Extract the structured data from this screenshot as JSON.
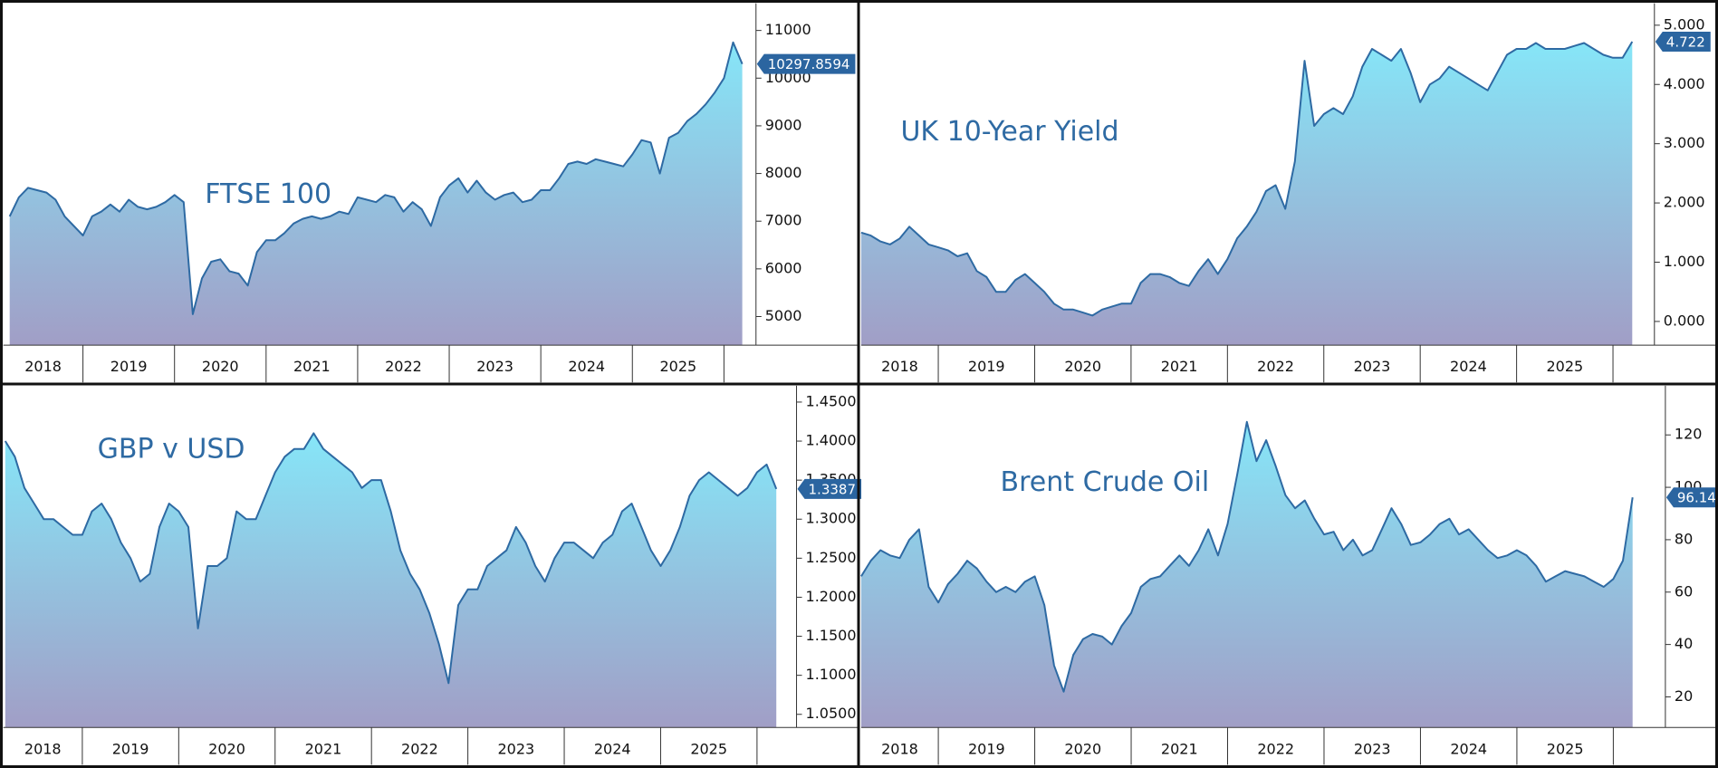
{
  "chart_data": [
    {
      "type": "area",
      "title": "FTSE 100",
      "color": "#2e6aa3",
      "gradient": [
        "#86e6f8",
        "#a19ec6"
      ],
      "xlim": [
        2018.13,
        2026.35
      ],
      "ylim": [
        4400,
        11570
      ],
      "xticks": [
        2018,
        2019,
        2020,
        2021,
        2022,
        2023,
        2024,
        2025
      ],
      "yticks": [
        5000,
        6000,
        7000,
        8000,
        9000,
        10000,
        11000
      ],
      "x": [
        2018.2,
        2018.3,
        2018.4,
        2018.5,
        2018.6,
        2018.7,
        2018.8,
        2018.9,
        2019.0,
        2019.1,
        2019.2,
        2019.3,
        2019.4,
        2019.5,
        2019.6,
        2019.7,
        2019.8,
        2019.9,
        2020.0,
        2020.1,
        2020.2,
        2020.3,
        2020.4,
        2020.5,
        2020.6,
        2020.7,
        2020.8,
        2020.9,
        2021.0,
        2021.1,
        2021.2,
        2021.3,
        2021.4,
        2021.5,
        2021.6,
        2021.7,
        2021.8,
        2021.9,
        2022.0,
        2022.1,
        2022.2,
        2022.3,
        2022.4,
        2022.5,
        2022.6,
        2022.7,
        2022.8,
        2022.9,
        2023.0,
        2023.1,
        2023.2,
        2023.3,
        2023.4,
        2023.5,
        2023.6,
        2023.7,
        2023.8,
        2023.9,
        2024.0,
        2024.1,
        2024.2,
        2024.3,
        2024.4,
        2024.5,
        2024.6,
        2024.7,
        2024.8,
        2024.9,
        2025.0,
        2025.1,
        2025.2,
        2025.3,
        2025.4,
        2025.5,
        2025.6,
        2025.7,
        2025.8,
        2025.9,
        2026.0,
        2026.1,
        2026.2
      ],
      "values": [
        7100,
        7500,
        7700,
        7650,
        7600,
        7450,
        7100,
        6900,
        6700,
        7100,
        7200,
        7350,
        7200,
        7450,
        7300,
        7250,
        7300,
        7400,
        7550,
        7400,
        5050,
        5800,
        6150,
        6200,
        5950,
        5900,
        5650,
        6350,
        6600,
        6600,
        6750,
        6950,
        7050,
        7100,
        7050,
        7100,
        7200,
        7150,
        7500,
        7450,
        7400,
        7550,
        7500,
        7200,
        7400,
        7250,
        6900,
        7500,
        7750,
        7900,
        7600,
        7850,
        7600,
        7450,
        7550,
        7600,
        7400,
        7450,
        7650,
        7650,
        7900,
        8200,
        8250,
        8200,
        8300,
        8250,
        8200,
        8150,
        8400,
        8700,
        8650,
        8000,
        8750,
        8850,
        9100,
        9250,
        9450,
        9700,
        10000,
        10750,
        10297.8594
      ]
    },
    {
      "type": "area",
      "title": "UK 10-Year Yield",
      "color": "#2e6aa3",
      "gradient": [
        "#86e6f8",
        "#a19ec6"
      ],
      "xlim": [
        2018.2,
        2026.43
      ],
      "ylim": [
        -0.4,
        5.37
      ],
      "xticks": [
        2018,
        2019,
        2020,
        2021,
        2022,
        2023,
        2024,
        2025
      ],
      "yticks": [
        {
          "value": 0,
          "label": "0.000"
        },
        {
          "value": 1,
          "label": "1.000"
        },
        {
          "value": 2,
          "label": "2.000"
        },
        {
          "value": 3,
          "label": "3.000"
        },
        {
          "value": 4,
          "label": "4.000"
        },
        {
          "value": 5,
          "label": "5.000"
        }
      ],
      "x": [
        2018.2,
        2018.3,
        2018.4,
        2018.5,
        2018.6,
        2018.7,
        2018.8,
        2018.9,
        2019.0,
        2019.1,
        2019.2,
        2019.3,
        2019.4,
        2019.5,
        2019.6,
        2019.7,
        2019.8,
        2019.9,
        2020.0,
        2020.1,
        2020.2,
        2020.3,
        2020.4,
        2020.5,
        2020.6,
        2020.7,
        2020.8,
        2020.9,
        2021.0,
        2021.1,
        2021.2,
        2021.3,
        2021.4,
        2021.5,
        2021.6,
        2021.7,
        2021.8,
        2021.9,
        2022.0,
        2022.1,
        2022.2,
        2022.3,
        2022.4,
        2022.5,
        2022.6,
        2022.7,
        2022.8,
        2022.9,
        2023.0,
        2023.1,
        2023.2,
        2023.3,
        2023.4,
        2023.5,
        2023.6,
        2023.7,
        2023.8,
        2023.9,
        2024.0,
        2024.1,
        2024.2,
        2024.3,
        2024.4,
        2024.5,
        2024.6,
        2024.7,
        2024.8,
        2024.9,
        2025.0,
        2025.1,
        2025.2,
        2025.3,
        2025.4,
        2025.5,
        2025.6,
        2025.7,
        2025.8,
        2025.9,
        2026.0,
        2026.1,
        2026.2
      ],
      "values": [
        1.5,
        1.45,
        1.35,
        1.3,
        1.4,
        1.6,
        1.45,
        1.3,
        1.25,
        1.2,
        1.1,
        1.15,
        0.85,
        0.75,
        0.5,
        0.5,
        0.7,
        0.8,
        0.65,
        0.5,
        0.3,
        0.2,
        0.2,
        0.15,
        0.1,
        0.2,
        0.25,
        0.3,
        0.3,
        0.65,
        0.8,
        0.8,
        0.75,
        0.65,
        0.6,
        0.85,
        1.05,
        0.8,
        1.05,
        1.4,
        1.6,
        1.85,
        2.2,
        2.3,
        1.9,
        2.7,
        4.4,
        3.3,
        3.5,
        3.6,
        3.5,
        3.8,
        4.3,
        4.6,
        4.5,
        4.4,
        4.6,
        4.2,
        3.7,
        4.0,
        4.1,
        4.3,
        4.2,
        4.1,
        4.0,
        3.9,
        4.2,
        4.5,
        4.6,
        4.6,
        4.7,
        4.6,
        4.6,
        4.6,
        4.65,
        4.7,
        4.6,
        4.5,
        4.45,
        4.45,
        4.722
      ]
    },
    {
      "type": "area",
      "title": "GBP v USD",
      "color": "#2e6aa3",
      "gradient": [
        "#86e6f8",
        "#a19ec6"
      ],
      "xlim": [
        2018.18,
        2026.41
      ],
      "ylim": [
        1.0331,
        1.471
      ],
      "xticks": [
        2018,
        2019,
        2020,
        2021,
        2022,
        2023,
        2024,
        2025
      ],
      "yticks": [
        {
          "value": 1.05,
          "label": "1.0500"
        },
        {
          "value": 1.1,
          "label": "1.1000"
        },
        {
          "value": 1.15,
          "label": "1.1500"
        },
        {
          "value": 1.2,
          "label": "1.2000"
        },
        {
          "value": 1.25,
          "label": "1.2500"
        },
        {
          "value": 1.3,
          "label": "1.3000"
        },
        {
          "value": 1.35,
          "label": "1.3500"
        },
        {
          "value": 1.4,
          "label": "1.4000"
        },
        {
          "value": 1.45,
          "label": "1.4500"
        }
      ],
      "x": [
        2018.2,
        2018.3,
        2018.4,
        2018.5,
        2018.6,
        2018.7,
        2018.8,
        2018.9,
        2019.0,
        2019.1,
        2019.2,
        2019.3,
        2019.4,
        2019.5,
        2019.6,
        2019.7,
        2019.8,
        2019.9,
        2020.0,
        2020.1,
        2020.2,
        2020.3,
        2020.4,
        2020.5,
        2020.6,
        2020.7,
        2020.8,
        2020.9,
        2021.0,
        2021.1,
        2021.2,
        2021.3,
        2021.4,
        2021.5,
        2021.6,
        2021.7,
        2021.8,
        2021.9,
        2022.0,
        2022.1,
        2022.2,
        2022.3,
        2022.4,
        2022.5,
        2022.6,
        2022.7,
        2022.8,
        2022.9,
        2023.0,
        2023.1,
        2023.2,
        2023.3,
        2023.4,
        2023.5,
        2023.6,
        2023.7,
        2023.8,
        2023.9,
        2024.0,
        2024.1,
        2024.2,
        2024.3,
        2024.4,
        2024.5,
        2024.6,
        2024.7,
        2024.8,
        2024.9,
        2025.0,
        2025.1,
        2025.2,
        2025.3,
        2025.4,
        2025.5,
        2025.6,
        2025.7,
        2025.8,
        2025.9,
        2026.0,
        2026.1,
        2026.2
      ],
      "values": [
        1.4,
        1.38,
        1.34,
        1.32,
        1.3,
        1.3,
        1.29,
        1.28,
        1.28,
        1.31,
        1.32,
        1.3,
        1.27,
        1.25,
        1.22,
        1.23,
        1.29,
        1.32,
        1.31,
        1.29,
        1.16,
        1.24,
        1.24,
        1.25,
        1.31,
        1.3,
        1.3,
        1.33,
        1.36,
        1.38,
        1.39,
        1.39,
        1.41,
        1.39,
        1.38,
        1.37,
        1.36,
        1.34,
        1.35,
        1.35,
        1.31,
        1.26,
        1.23,
        1.21,
        1.18,
        1.14,
        1.09,
        1.19,
        1.21,
        1.21,
        1.24,
        1.25,
        1.26,
        1.29,
        1.27,
        1.24,
        1.22,
        1.25,
        1.27,
        1.27,
        1.26,
        1.25,
        1.27,
        1.28,
        1.31,
        1.32,
        1.29,
        1.26,
        1.24,
        1.26,
        1.29,
        1.33,
        1.35,
        1.36,
        1.35,
        1.34,
        1.33,
        1.34,
        1.36,
        1.37,
        1.3387
      ]
    },
    {
      "type": "area",
      "title": "Brent Crude Oil",
      "color": "#2e6aa3",
      "gradient": [
        "#86e6f8",
        "#a19ec6"
      ],
      "xlim": [
        2018.2,
        2026.54
      ],
      "ylim": [
        8.3,
        138.8
      ],
      "xticks": [
        2018,
        2019,
        2020,
        2021,
        2022,
        2023,
        2024,
        2025
      ],
      "yticks": [
        20,
        40,
        60,
        80,
        100,
        120
      ],
      "x": [
        2018.2,
        2018.3,
        2018.4,
        2018.5,
        2018.6,
        2018.7,
        2018.8,
        2018.9,
        2019.0,
        2019.1,
        2019.2,
        2019.3,
        2019.4,
        2019.5,
        2019.6,
        2019.7,
        2019.8,
        2019.9,
        2020.0,
        2020.1,
        2020.2,
        2020.3,
        2020.4,
        2020.5,
        2020.6,
        2020.7,
        2020.8,
        2020.9,
        2021.0,
        2021.1,
        2021.2,
        2021.3,
        2021.4,
        2021.5,
        2021.6,
        2021.7,
        2021.8,
        2021.9,
        2022.0,
        2022.1,
        2022.2,
        2022.3,
        2022.4,
        2022.5,
        2022.6,
        2022.7,
        2022.8,
        2022.9,
        2023.0,
        2023.1,
        2023.2,
        2023.3,
        2023.4,
        2023.5,
        2023.6,
        2023.7,
        2023.8,
        2023.9,
        2024.0,
        2024.1,
        2024.2,
        2024.3,
        2024.4,
        2024.5,
        2024.6,
        2024.7,
        2024.8,
        2024.9,
        2025.0,
        2025.1,
        2025.2,
        2025.3,
        2025.4,
        2025.5,
        2025.6,
        2025.7,
        2025.8,
        2025.9,
        2026.0,
        2026.1,
        2026.2
      ],
      "values": [
        66,
        72,
        76,
        74,
        73,
        80,
        84,
        62,
        56,
        63,
        67,
        72,
        69,
        64,
        60,
        62,
        60,
        64,
        66,
        55,
        32,
        22,
        36,
        42,
        44,
        43,
        40,
        47,
        52,
        62,
        65,
        66,
        70,
        74,
        70,
        76,
        84,
        74,
        86,
        105,
        125,
        110,
        118,
        108,
        97,
        92,
        95,
        88,
        82,
        83,
        76,
        80,
        74,
        76,
        84,
        92,
        86,
        78,
        79,
        82,
        86,
        88,
        82,
        84,
        80,
        76,
        73,
        74,
        76,
        74,
        70,
        64,
        66,
        68,
        67,
        66,
        64,
        62,
        65,
        72,
        96.14
      ]
    }
  ]
}
